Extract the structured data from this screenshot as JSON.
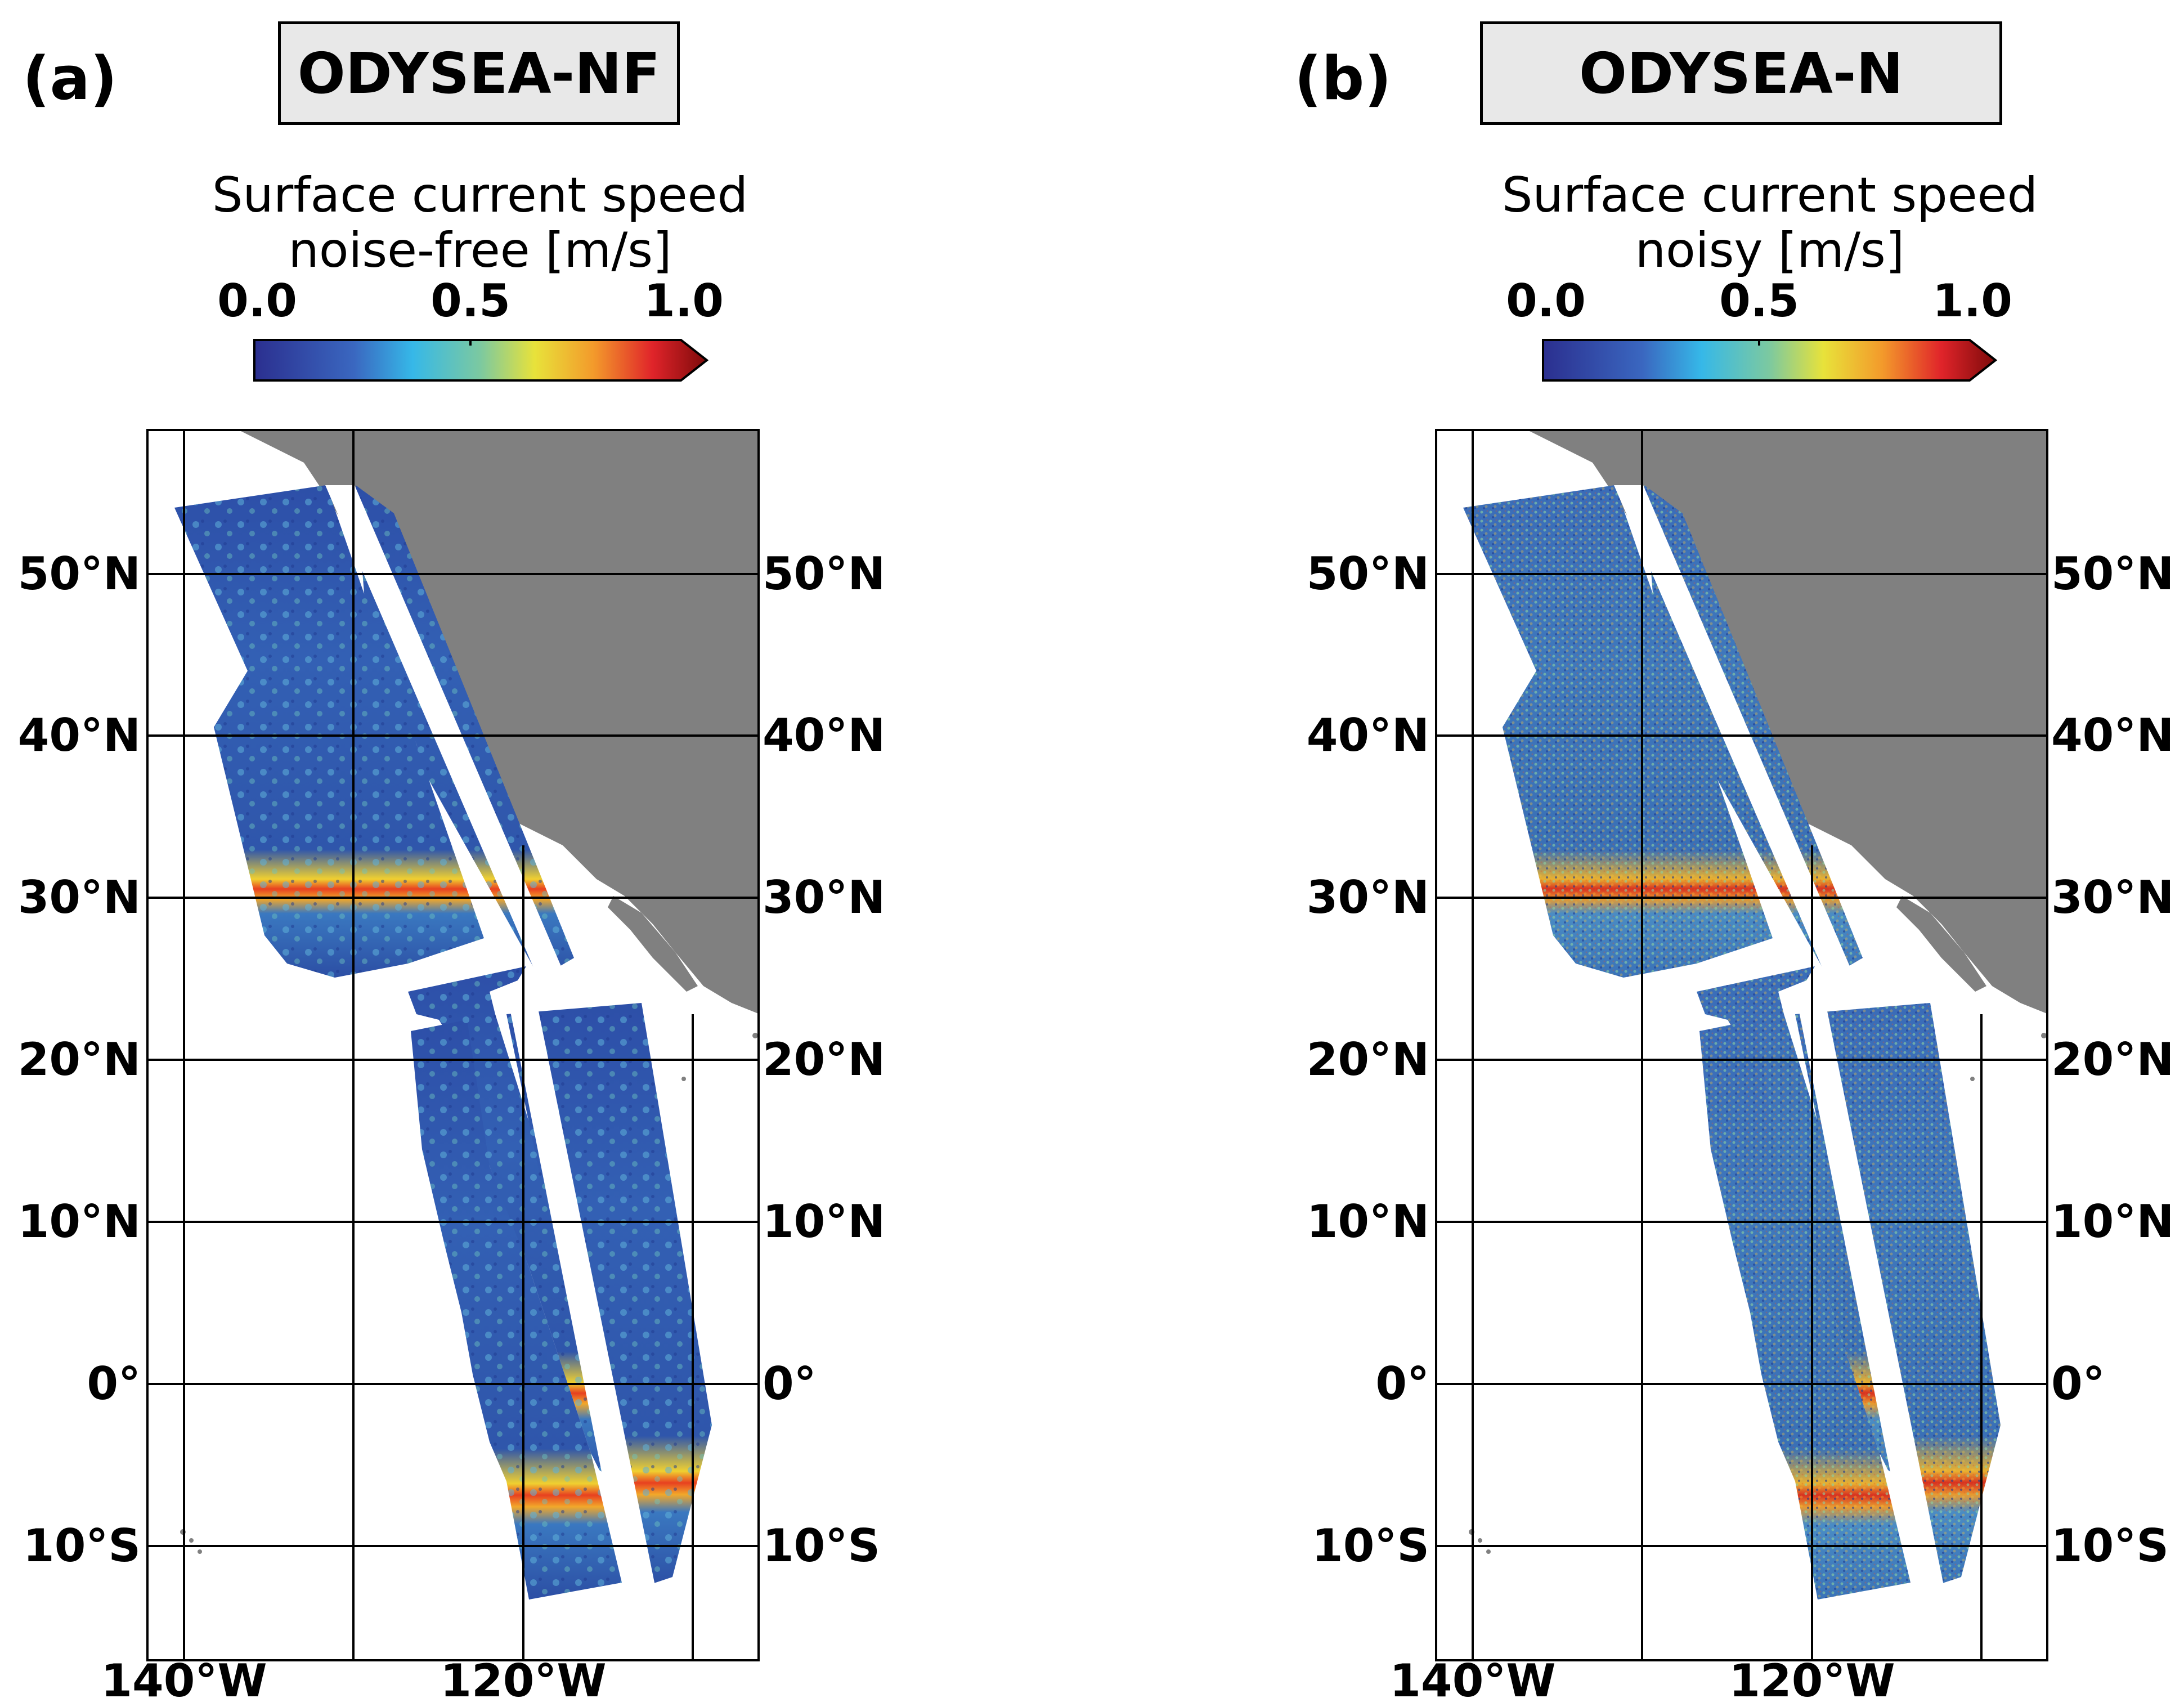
{
  "panels": [
    {
      "panel_label": "(a)",
      "title": "ODYSEA-NF",
      "colorbar_title_line1": "Surface current speed",
      "colorbar_title_line2": "noise-free [m/s]",
      "colorbar_ticks": [
        "0.0",
        "0.5",
        "1.0"
      ],
      "colorbar_range": [
        0.0,
        1.0
      ],
      "colormap": "jet-like (dark blue → cyan → yellow → red → dark red), extend max",
      "noise": "noise-free",
      "lat_labels": [
        "50°N",
        "40°N",
        "30°N",
        "20°N",
        "10°N",
        "0°",
        "10°S"
      ],
      "lon_labels": [
        "140°W",
        "120°W"
      ]
    },
    {
      "panel_label": "(b)",
      "title": "ODYSEA-N",
      "colorbar_title_line1": "Surface current speed",
      "colorbar_title_line2": "noisy [m/s]",
      "colorbar_ticks": [
        "0.0",
        "0.5",
        "1.0"
      ],
      "colorbar_range": [
        0.0,
        1.0
      ],
      "colormap": "jet-like (dark blue → cyan → yellow → red → dark red), extend max",
      "noise": "noisy",
      "lat_labels": [
        "50°N",
        "40°N",
        "30°N",
        "20°N",
        "10°N",
        "0°",
        "10°S"
      ],
      "lon_labels": [
        "140°W",
        "120°W"
      ]
    }
  ],
  "map_extent": {
    "lon_min": -142,
    "lon_max": -106,
    "lat_min": -16.5,
    "lat_max": 59
  },
  "graticule": {
    "lons": [
      -140,
      -130,
      -120,
      -110
    ],
    "lats": [
      50,
      40,
      30,
      20,
      10,
      0,
      -10
    ]
  },
  "colors": {
    "land": "#808080",
    "ocean_background": "#ffffff",
    "low_speed": "#2b3f9e",
    "high_speed": "#8b1010",
    "title_box_fill": "#e8e8e8"
  }
}
